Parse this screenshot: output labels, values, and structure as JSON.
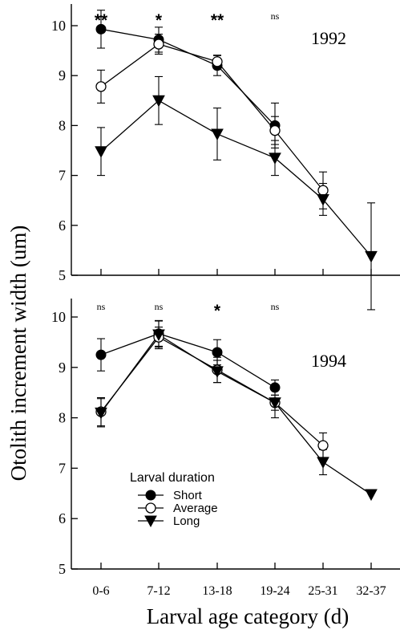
{
  "chart_data": {
    "type": "line",
    "ylabel": "Otolith increment width (um)",
    "xlabel": "Larval age category (d)",
    "categories": [
      "0-6",
      "7-12",
      "13-18",
      "19-24",
      "25-31",
      "32-37"
    ],
    "ylim": [
      5,
      10
    ],
    "yticks": [
      5,
      6,
      7,
      8,
      9,
      10
    ],
    "grid": false,
    "legend": {
      "title": "Larval duration",
      "placement": "bottom-left of lower panel",
      "entries": [
        "Short",
        "Average",
        "Long"
      ]
    },
    "panels": [
      {
        "title": "1992",
        "significance": [
          "**",
          "*",
          "**",
          "ns",
          "",
          ""
        ],
        "series": [
          {
            "name": "Short",
            "marker": "filled-circle",
            "values": [
              9.93,
              9.72,
              9.2,
              8.0,
              null,
              null
            ],
            "errors": [
              0.38,
              0.25,
              0.2,
              0.45,
              null,
              null
            ]
          },
          {
            "name": "Average",
            "marker": "open-circle",
            "values": [
              8.78,
              9.63,
              9.28,
              7.9,
              6.7,
              null
            ],
            "errors": [
              0.33,
              0.2,
              0.13,
              0.28,
              0.37,
              null
            ]
          },
          {
            "name": "Long",
            "marker": "filled-triangle",
            "values": [
              7.48,
              8.5,
              7.83,
              7.35,
              6.52,
              5.38
            ],
            "errors": [
              0.48,
              0.48,
              0.52,
              0.35,
              0.32,
              1.07
            ]
          }
        ]
      },
      {
        "title": "1994",
        "significance": [
          "ns",
          "ns",
          "*",
          "ns",
          "",
          ""
        ],
        "series": [
          {
            "name": "Short",
            "marker": "filled-circle",
            "values": [
              9.25,
              9.67,
              9.3,
              8.6,
              null,
              null
            ],
            "errors": [
              0.32,
              0.25,
              0.25,
              0.15,
              null,
              null
            ]
          },
          {
            "name": "Average",
            "marker": "open-circle",
            "values": [
              8.12,
              9.6,
              8.95,
              8.3,
              7.45,
              null
            ],
            "errors": [
              0.28,
              0.2,
              0.25,
              0.3,
              0.25,
              null
            ]
          },
          {
            "name": "Long",
            "marker": "filled-triangle",
            "values": [
              8.1,
              9.65,
              8.92,
              8.3,
              7.12,
              6.48
            ],
            "errors": [
              0.28,
              0.28,
              0.22,
              0.15,
              0.25,
              null
            ]
          }
        ]
      }
    ]
  }
}
